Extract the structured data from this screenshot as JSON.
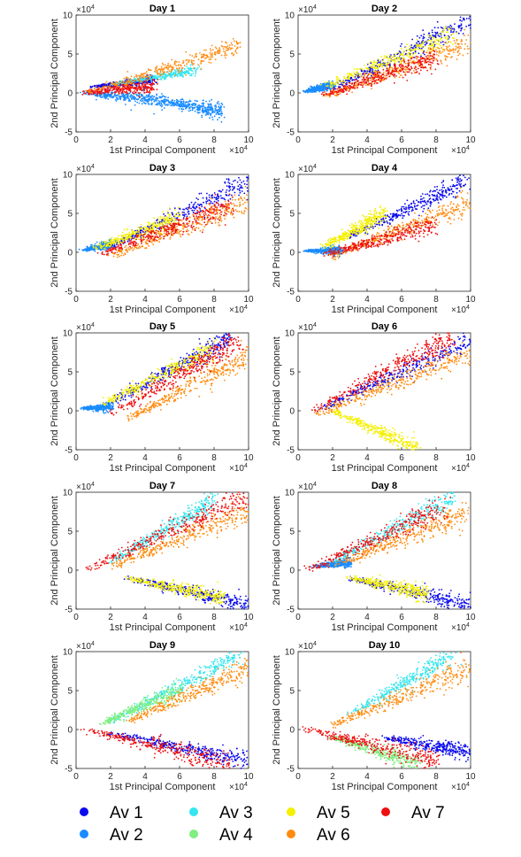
{
  "chart_data": {
    "type": "scatter",
    "xlabel": "1st Principal Component",
    "ylabel": "2nd Principal Component",
    "x_exponent_label": "×10",
    "x_exponent": "4",
    "y_exponent_label": "×10",
    "y_exponent": "4",
    "xlim": [
      0,
      10
    ],
    "ylim": [
      -5,
      10
    ],
    "xticks": [
      0,
      2,
      4,
      6,
      8,
      10
    ],
    "yticks": [
      -5,
      0,
      5,
      10
    ],
    "legend": [
      {
        "name": "Av 1",
        "color": "#0a0aee"
      },
      {
        "name": "Av 2",
        "color": "#1a8cff"
      },
      {
        "name": "Av 3",
        "color": "#33e6f0"
      },
      {
        "name": "Av 4",
        "color": "#7fef7f"
      },
      {
        "name": "Av 5",
        "color": "#f4f000"
      },
      {
        "name": "Av 6",
        "color": "#ff8c10"
      },
      {
        "name": "Av 7",
        "color": "#ee1010"
      }
    ],
    "panels": [
      {
        "title": "Day 1",
        "series": [
          {
            "name": "Av 2",
            "clusters": [
              [
                0.5,
                0,
                5,
                -1,
                0.8
              ],
              [
                5,
                -1,
                8.5,
                -2.5,
                1.0
              ]
            ]
          },
          {
            "name": "Av 1",
            "clusters": [
              [
                1,
                0.8,
                4.5,
                1.7,
                0.5
              ]
            ]
          },
          {
            "name": "Av 3",
            "clusters": [
              [
                2,
                1,
                7,
                3,
                0.5
              ]
            ]
          },
          {
            "name": "Av 7",
            "clusters": [
              [
                0.5,
                0,
                4.5,
                1,
                0.8
              ]
            ]
          },
          {
            "name": "Av 6",
            "clusters": [
              [
                0.5,
                0,
                9.5,
                6,
                1.0
              ]
            ]
          }
        ]
      },
      {
        "title": "Day 2",
        "series": [
          {
            "name": "Av 2",
            "clusters": [
              [
                0.5,
                0.2,
                2,
                1,
                0.5
              ]
            ]
          },
          {
            "name": "Av 1",
            "clusters": [
              [
                2,
                0.5,
                10,
                9.5,
                1.2
              ]
            ]
          },
          {
            "name": "Av 5",
            "clusters": [
              [
                1.5,
                0.8,
                9,
                7.5,
                1.2
              ]
            ]
          },
          {
            "name": "Av 6",
            "clusters": [
              [
                1.5,
                -0.5,
                10,
                6.5,
                1.3
              ]
            ]
          },
          {
            "name": "Av 7",
            "clusters": [
              [
                1.5,
                -0.3,
                8,
                4.5,
                1.1
              ]
            ]
          }
        ]
      },
      {
        "title": "Day 3",
        "series": [
          {
            "name": "Av 2",
            "clusters": [
              [
                0.5,
                0.3,
                2,
                1,
                0.5
              ]
            ]
          },
          {
            "name": "Av 1",
            "clusters": [
              [
                2,
                0.8,
                10,
                9,
                1.2
              ]
            ]
          },
          {
            "name": "Av 5",
            "clusters": [
              [
                1.2,
                0.6,
                6,
                4.5,
                1.0
              ]
            ]
          },
          {
            "name": "Av 6",
            "clusters": [
              [
                2,
                -0.5,
                10,
                6.5,
                1.3
              ]
            ]
          },
          {
            "name": "Av 7",
            "clusters": [
              [
                1.5,
                -0.2,
                9,
                6,
                1.2
              ]
            ]
          }
        ]
      },
      {
        "title": "Day 4",
        "series": [
          {
            "name": "Av 2",
            "clusters": [
              [
                0.5,
                0.2,
                2.5,
                0.2,
                0.5
              ]
            ]
          },
          {
            "name": "Av 1",
            "clusters": [
              [
                3,
                2,
                10,
                9.5,
                1.2
              ]
            ]
          },
          {
            "name": "Av 5",
            "clusters": [
              [
                1.5,
                0.8,
                5,
                5,
                1.0
              ]
            ]
          },
          {
            "name": "Av 6",
            "clusters": [
              [
                2,
                -0.5,
                10,
                6.5,
                1.3
              ]
            ]
          },
          {
            "name": "Av 7",
            "clusters": [
              [
                1.5,
                -0.3,
                8,
                3.5,
                1.1
              ]
            ]
          }
        ]
      },
      {
        "title": "Day 5",
        "series": [
          {
            "name": "Av 2",
            "clusters": [
              [
                0.5,
                0.3,
                2,
                0.5,
                0.5
              ]
            ]
          },
          {
            "name": "Av 1",
            "clusters": [
              [
                2,
                1,
                9,
                9.5,
                1.2
              ]
            ]
          },
          {
            "name": "Av 5",
            "clusters": [
              [
                1.5,
                0.8,
                8,
                8,
                1.1
              ]
            ]
          },
          {
            "name": "Av 6",
            "clusters": [
              [
                3,
                -1,
                10,
                7,
                1.3
              ]
            ]
          },
          {
            "name": "Av 7",
            "clusters": [
              [
                2,
                -0.5,
                9.5,
                9,
                1.3
              ]
            ]
          }
        ]
      },
      {
        "title": "Day 6",
        "series": [
          {
            "name": "Av 5",
            "clusters": [
              [
                2,
                0,
                7,
                -5,
                0.9
              ]
            ]
          },
          {
            "name": "Av 1",
            "clusters": [
              [
                1,
                0,
                10,
                9,
                1.1
              ]
            ]
          },
          {
            "name": "Av 6",
            "clusters": [
              [
                1,
                -0.5,
                10,
                7.5,
                1.3
              ]
            ]
          },
          {
            "name": "Av 7",
            "clusters": [
              [
                0.8,
                0,
                9,
                9.5,
                1.3
              ]
            ]
          }
        ]
      },
      {
        "title": "Day 7",
        "series": [
          {
            "name": "Av 1",
            "clusters": [
              [
                3,
                -1,
                10,
                -4.5,
                1.0
              ]
            ]
          },
          {
            "name": "Av 5",
            "clusters": [
              [
                3,
                -1,
                8.5,
                -3.5,
                0.9
              ]
            ]
          },
          {
            "name": "Av 3",
            "clusters": [
              [
                2,
                1,
                8,
                9,
                1.1
              ]
            ]
          },
          {
            "name": "Av 6",
            "clusters": [
              [
                2,
                0.5,
                10,
                7.5,
                1.3
              ]
            ]
          },
          {
            "name": "Av 7",
            "clusters": [
              [
                0.5,
                0,
                10,
                9.5,
                1.4
              ]
            ]
          }
        ]
      },
      {
        "title": "Day 8",
        "series": [
          {
            "name": "Av 2",
            "clusters": [
              [
                1,
                0.5,
                3,
                1,
                0.5
              ]
            ]
          },
          {
            "name": "Av 1",
            "clusters": [
              [
                3,
                -1,
                10,
                -4.5,
                1.0
              ]
            ]
          },
          {
            "name": "Av 5",
            "clusters": [
              [
                3,
                -1,
                7.5,
                -3,
                0.9
              ]
            ]
          },
          {
            "name": "Av 3",
            "clusters": [
              [
                2,
                1,
                9,
                9.5,
                1.2
              ]
            ]
          },
          {
            "name": "Av 6",
            "clusters": [
              [
                2,
                0.5,
                10,
                7.5,
                1.3
              ]
            ]
          },
          {
            "name": "Av 7",
            "clusters": [
              [
                0.5,
                0,
                8.5,
                8,
                1.3
              ]
            ]
          }
        ]
      },
      {
        "title": "Day 9",
        "series": [
          {
            "name": "Av 1",
            "clusters": [
              [
                2,
                -0.5,
                10,
                -4,
                1.0
              ]
            ]
          },
          {
            "name": "Av 3",
            "clusters": [
              [
                2,
                1,
                9.5,
                9.5,
                1.1
              ]
            ]
          },
          {
            "name": "Av 4",
            "clusters": [
              [
                1.5,
                0.8,
                6,
                5,
                1.0
              ]
            ]
          },
          {
            "name": "Av 6",
            "clusters": [
              [
                3,
                1,
                10,
                8,
                1.3
              ]
            ]
          },
          {
            "name": "Av 7",
            "clusters": [
              [
                0.5,
                0,
                9,
                -4.5,
                1.3
              ]
            ]
          }
        ]
      },
      {
        "title": "Day 10",
        "series": [
          {
            "name": "Av 4",
            "clusters": [
              [
                2,
                -1,
                7,
                -4.5,
                0.9
              ]
            ]
          },
          {
            "name": "Av 1",
            "clusters": [
              [
                5,
                -1,
                10,
                -3,
                1.0
              ]
            ]
          },
          {
            "name": "Av 3",
            "clusters": [
              [
                3,
                2,
                9,
                9.5,
                1.1
              ]
            ]
          },
          {
            "name": "Av 6",
            "clusters": [
              [
                2,
                0.5,
                10,
                8,
                1.3
              ]
            ]
          },
          {
            "name": "Av 7",
            "clusters": [
              [
                0.5,
                0,
                8,
                -4,
                1.3
              ]
            ]
          }
        ]
      }
    ]
  }
}
